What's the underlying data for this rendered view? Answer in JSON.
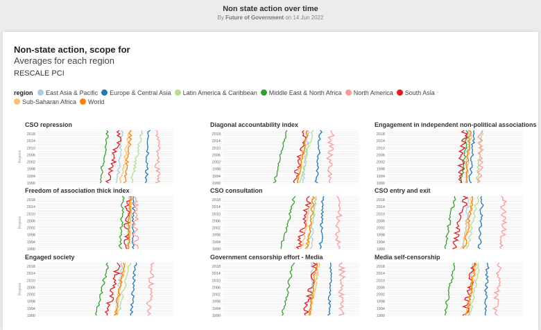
{
  "header": {
    "title": "Non state action over time",
    "byline_prefix": "By",
    "author": "Future of Government",
    "date_prefix": "on",
    "date": "14 Jun 2022"
  },
  "chart_data": {
    "type": "line",
    "title": "Non-state action, scope for",
    "subtitle": "Averages for each region",
    "rescale_label": "RESCALE PCI",
    "legend_title": "region",
    "ylabel": "Regions",
    "yticks": [
      "2018",
      "2014",
      "2010",
      "2006",
      "2002",
      "1998",
      "1994",
      "1990"
    ],
    "ylim": [
      1990,
      2020
    ],
    "xlim": [
      0,
      1
    ],
    "series": [
      {
        "name": "East Asia & Pacific",
        "color": "#a6cee3"
      },
      {
        "name": "Europe & Central Asia",
        "color": "#1f78b4"
      },
      {
        "name": "Latin America & Caribbean",
        "color": "#b2df8a"
      },
      {
        "name": "Middle East & North Africa",
        "color": "#33a02c"
      },
      {
        "name": "North America",
        "color": "#fb9a99"
      },
      {
        "name": "South Asia",
        "color": "#e31a1c"
      },
      {
        "name": "Sub-Saharan Africa",
        "color": "#fdbf6f"
      },
      {
        "name": "World",
        "color": "#ff7f00"
      }
    ],
    "panels": [
      {
        "title": "CSO repression",
        "v": [
          0.62,
          0.82,
          0.77,
          0.52,
          0.89,
          0.61,
          0.68,
          0.69
        ],
        "tr": [
          0.03,
          0.02,
          0.08,
          0.06,
          0.01,
          0.09,
          0.07,
          0.05
        ]
      },
      {
        "title": "Diagonal accountability index",
        "v": [
          0.63,
          0.72,
          0.66,
          0.47,
          0.8,
          0.61,
          0.63,
          0.62
        ],
        "tr": [
          0.04,
          0.03,
          0.09,
          0.09,
          0.02,
          0.08,
          0.09,
          0.07
        ]
      },
      {
        "title": "Engagement in independent non-political associations",
        "v": [
          0.6,
          0.64,
          0.7,
          0.59,
          0.69,
          0.57,
          0.62,
          0.61
        ],
        "tr": [
          0.02,
          0.03,
          0.04,
          0.04,
          0.01,
          0.04,
          0.04,
          0.03
        ]
      },
      {
        "title": "Freedom of association thick index",
        "v": [
          0.68,
          0.71,
          0.69,
          0.63,
          0.72,
          0.67,
          0.69,
          0.68
        ],
        "tr": [
          0.01,
          0.01,
          0.02,
          0.02,
          0.0,
          0.02,
          0.02,
          0.01
        ]
      },
      {
        "title": "CSO consultation",
        "v": [
          0.68,
          0.74,
          0.69,
          0.53,
          0.86,
          0.64,
          0.66,
          0.67
        ],
        "tr": [
          0.03,
          0.02,
          0.07,
          0.1,
          0.01,
          0.08,
          0.08,
          0.05
        ]
      },
      {
        "title": "CSO entry and exit",
        "v": [
          0.6,
          0.7,
          0.67,
          0.5,
          0.86,
          0.58,
          0.63,
          0.63
        ],
        "tr": [
          0.04,
          0.02,
          0.08,
          0.08,
          0.01,
          0.09,
          0.08,
          0.06
        ]
      },
      {
        "title": "Engaged society",
        "v": [
          0.62,
          0.72,
          0.68,
          0.52,
          0.84,
          0.6,
          0.65,
          0.64
        ],
        "tr": [
          0.04,
          0.03,
          0.09,
          0.09,
          0.02,
          0.09,
          0.08,
          0.07
        ]
      },
      {
        "title": "Government censorship effort - Media",
        "v": [
          0.66,
          0.8,
          0.7,
          0.52,
          0.88,
          0.68,
          0.71,
          0.69
        ],
        "tr": [
          0.02,
          0.02,
          0.06,
          0.08,
          0.01,
          0.07,
          0.07,
          0.05
        ]
      },
      {
        "title": "Media self-censorship",
        "v": [
          0.63,
          0.74,
          0.68,
          0.5,
          0.82,
          0.64,
          0.66,
          0.65
        ],
        "tr": [
          0.03,
          0.02,
          0.07,
          0.08,
          0.02,
          0.07,
          0.08,
          0.06
        ]
      }
    ]
  }
}
